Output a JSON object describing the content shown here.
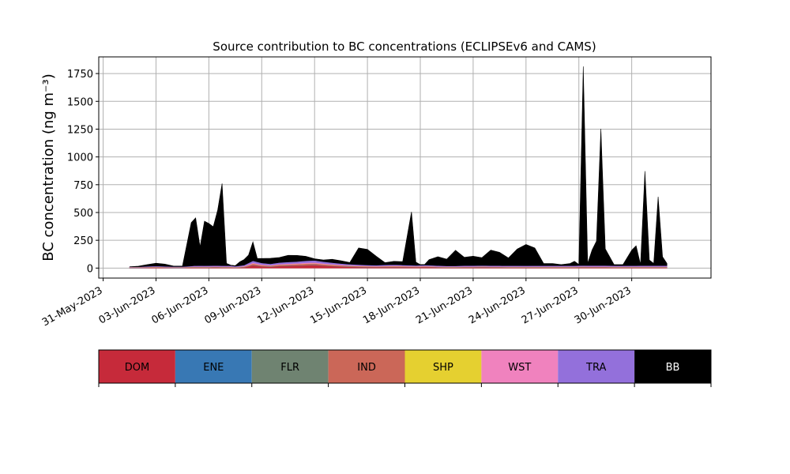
{
  "chart_data": {
    "type": "area",
    "stacked": true,
    "title": "Source contribution to BC concentrations (ECLIPSEv6 and CAMS)",
    "xlabel": "",
    "ylabel": "BC concentration (ng m⁻³)",
    "ylim": [
      -90,
      1900
    ],
    "xlim": [
      "2023-05-30T18:00",
      "2023-07-04T12:00"
    ],
    "yticks": [
      0,
      250,
      500,
      750,
      1000,
      1250,
      1500,
      1750
    ],
    "ytick_labels": [
      "0",
      "250",
      "500",
      "750",
      "1000",
      "1250",
      "1500",
      "1750"
    ],
    "xticks": [
      "2023-05-31",
      "2023-06-03",
      "2023-06-06",
      "2023-06-09",
      "2023-06-12",
      "2023-06-15",
      "2023-06-18",
      "2023-06-21",
      "2023-06-24",
      "2023-06-27",
      "2023-06-30"
    ],
    "xtick_labels": [
      "31-May-2023",
      "03-Jun-2023",
      "06-Jun-2023",
      "09-Jun-2023",
      "12-Jun-2023",
      "15-Jun-2023",
      "18-Jun-2023",
      "21-Jun-2023",
      "24-Jun-2023",
      "27-Jun-2023",
      "30-Jun-2023"
    ],
    "grid": true,
    "legend_position": "below",
    "x": [
      "2023-06-01T12:00",
      "2023-06-02T00:00",
      "2023-06-02T12:00",
      "2023-06-03T00:00",
      "2023-06-03T12:00",
      "2023-06-04T00:00",
      "2023-06-04T12:00",
      "2023-06-05T00:00",
      "2023-06-05T06:00",
      "2023-06-05T12:00",
      "2023-06-05T18:00",
      "2023-06-06T00:00",
      "2023-06-06T06:00",
      "2023-06-06T12:00",
      "2023-06-06T18:00",
      "2023-06-07T00:00",
      "2023-06-07T06:00",
      "2023-06-07T12:00",
      "2023-06-07T18:00",
      "2023-06-08T00:00",
      "2023-06-08T06:00",
      "2023-06-08T12:00",
      "2023-06-08T18:00",
      "2023-06-09T00:00",
      "2023-06-09T12:00",
      "2023-06-10T00:00",
      "2023-06-10T12:00",
      "2023-06-11T00:00",
      "2023-06-11T12:00",
      "2023-06-12T00:00",
      "2023-06-12T12:00",
      "2023-06-13T00:00",
      "2023-06-13T12:00",
      "2023-06-14T00:00",
      "2023-06-14T12:00",
      "2023-06-15T00:00",
      "2023-06-15T12:00",
      "2023-06-16T00:00",
      "2023-06-16T12:00",
      "2023-06-17T00:00",
      "2023-06-17T12:00",
      "2023-06-17T18:00",
      "2023-06-18T00:00",
      "2023-06-18T06:00",
      "2023-06-18T12:00",
      "2023-06-19T00:00",
      "2023-06-19T12:00",
      "2023-06-20T00:00",
      "2023-06-20T12:00",
      "2023-06-21T00:00",
      "2023-06-21T12:00",
      "2023-06-22T00:00",
      "2023-06-22T12:00",
      "2023-06-23T00:00",
      "2023-06-23T12:00",
      "2023-06-24T00:00",
      "2023-06-24T12:00",
      "2023-06-25T00:00",
      "2023-06-25T12:00",
      "2023-06-26T00:00",
      "2023-06-26T12:00",
      "2023-06-26T18:00",
      "2023-06-27T00:00",
      "2023-06-27T06:00",
      "2023-06-27T12:00",
      "2023-06-27T18:00",
      "2023-06-28T00:00",
      "2023-06-28T06:00",
      "2023-06-28T12:00",
      "2023-06-29T00:00",
      "2023-06-29T12:00",
      "2023-06-30T00:00",
      "2023-06-30T06:00",
      "2023-06-30T12:00",
      "2023-06-30T18:00",
      "2023-07-01T00:00",
      "2023-07-01T06:00",
      "2023-07-01T12:00",
      "2023-07-01T18:00",
      "2023-07-02T00:00"
    ],
    "series": [
      {
        "name": "DOM",
        "color": "#c62a3a",
        "values": [
          3,
          3,
          4,
          5,
          4,
          3,
          3,
          5,
          6,
          5,
          6,
          5,
          6,
          6,
          5,
          6,
          5,
          4,
          5,
          7,
          15,
          25,
          20,
          15,
          12,
          18,
          20,
          22,
          25,
          28,
          22,
          18,
          14,
          12,
          10,
          9,
          8,
          9,
          10,
          9,
          8,
          7,
          8,
          9,
          8,
          6,
          5,
          5,
          6,
          6,
          7,
          6,
          6,
          5,
          5,
          6,
          5,
          5,
          5,
          5,
          5,
          5,
          6,
          7,
          6,
          6,
          6,
          6,
          6,
          5,
          5,
          5,
          5,
          5,
          5,
          6,
          5,
          5,
          5,
          5
        ]
      },
      {
        "name": "ENE",
        "color": "#3878b4",
        "values": [
          1,
          1,
          1,
          1,
          1,
          1,
          1,
          1,
          1,
          1,
          1,
          1,
          1,
          1,
          1,
          1,
          1,
          1,
          1,
          1,
          1,
          1,
          1,
          1,
          1,
          1,
          1,
          1,
          1,
          1,
          1,
          1,
          1,
          1,
          1,
          1,
          1,
          1,
          1,
          1,
          1,
          1,
          1,
          1,
          1,
          1,
          1,
          1,
          1,
          1,
          1,
          1,
          1,
          1,
          1,
          1,
          1,
          1,
          1,
          1,
          1,
          1,
          1,
          1,
          1,
          1,
          1,
          1,
          1,
          1,
          1,
          1,
          1,
          1,
          1,
          1,
          1,
          1,
          1,
          1
        ]
      },
      {
        "name": "FLR",
        "color": "#6f8371",
        "values": [
          1,
          1,
          1,
          1,
          1,
          1,
          1,
          1,
          1,
          1,
          1,
          1,
          1,
          1,
          1,
          1,
          1,
          1,
          1,
          1,
          1,
          1,
          1,
          1,
          1,
          1,
          1,
          1,
          1,
          1,
          1,
          1,
          1,
          1,
          1,
          1,
          1,
          1,
          1,
          1,
          1,
          1,
          1,
          1,
          1,
          1,
          1,
          1,
          1,
          1,
          1,
          1,
          1,
          1,
          1,
          1,
          1,
          1,
          1,
          1,
          1,
          1,
          1,
          1,
          1,
          1,
          1,
          1,
          1,
          1,
          1,
          1,
          1,
          1,
          1,
          1,
          1,
          1,
          1,
          1
        ]
      },
      {
        "name": "IND",
        "color": "#cb6758",
        "values": [
          2,
          2,
          2,
          3,
          2,
          2,
          2,
          3,
          3,
          3,
          3,
          3,
          3,
          3,
          3,
          3,
          3,
          2,
          3,
          4,
          8,
          12,
          10,
          8,
          6,
          9,
          10,
          11,
          12,
          12,
          10,
          8,
          7,
          6,
          5,
          5,
          4,
          5,
          5,
          5,
          4,
          4,
          4,
          5,
          4,
          3,
          3,
          3,
          3,
          3,
          4,
          3,
          3,
          3,
          3,
          3,
          3,
          3,
          3,
          3,
          3,
          3,
          3,
          3,
          3,
          3,
          3,
          3,
          3,
          3,
          3,
          3,
          3,
          3,
          3,
          3,
          3,
          3,
          3,
          3
        ]
      },
      {
        "name": "SHP",
        "color": "#e5d030",
        "values": [
          1,
          1,
          1,
          1,
          1,
          1,
          1,
          1,
          1,
          1,
          1,
          1,
          1,
          1,
          1,
          1,
          1,
          1,
          1,
          1,
          1,
          1,
          1,
          1,
          1,
          1,
          1,
          1,
          1,
          1,
          1,
          1,
          1,
          1,
          1,
          1,
          1,
          1,
          1,
          1,
          1,
          1,
          1,
          1,
          1,
          1,
          1,
          1,
          1,
          1,
          1,
          1,
          1,
          1,
          1,
          1,
          1,
          1,
          1,
          1,
          1,
          1,
          1,
          1,
          1,
          1,
          1,
          1,
          1,
          1,
          1,
          1,
          1,
          1,
          1,
          1,
          1,
          1,
          1,
          1
        ]
      },
      {
        "name": "WST",
        "color": "#f082be",
        "values": [
          1,
          1,
          2,
          2,
          2,
          1,
          1,
          2,
          3,
          3,
          3,
          3,
          3,
          3,
          3,
          3,
          3,
          2,
          3,
          4,
          6,
          8,
          7,
          6,
          5,
          6,
          7,
          7,
          8,
          8,
          7,
          6,
          5,
          4,
          4,
          3,
          3,
          3,
          4,
          3,
          3,
          3,
          3,
          3,
          3,
          3,
          3,
          3,
          3,
          3,
          3,
          3,
          3,
          3,
          3,
          3,
          3,
          3,
          3,
          3,
          3,
          3,
          3,
          3,
          3,
          3,
          3,
          3,
          3,
          3,
          3,
          3,
          3,
          3,
          3,
          3,
          3,
          3,
          3,
          3
        ]
      },
      {
        "name": "TRA",
        "color": "#9370db",
        "values": [
          3,
          3,
          5,
          6,
          5,
          4,
          4,
          6,
          7,
          7,
          7,
          7,
          7,
          7,
          7,
          7,
          7,
          6,
          7,
          9,
          14,
          18,
          16,
          14,
          12,
          14,
          15,
          16,
          18,
          18,
          16,
          14,
          12,
          10,
          9,
          8,
          8,
          9,
          9,
          8,
          8,
          7,
          8,
          8,
          8,
          7,
          6,
          6,
          7,
          7,
          7,
          7,
          7,
          7,
          7,
          7,
          7,
          7,
          7,
          7,
          7,
          7,
          8,
          8,
          8,
          8,
          8,
          8,
          8,
          7,
          7,
          7,
          7,
          8,
          8,
          8,
          8,
          8,
          8,
          8
        ]
      },
      {
        "name": "BB",
        "color": "#000000",
        "values": [
          0,
          5,
          15,
          25,
          20,
          5,
          5,
          390,
          430,
          170,
          400,
          380,
          350,
          500,
          740,
          20,
          5,
          5,
          35,
          50,
          70,
          170,
          30,
          40,
          50,
          45,
          60,
          55,
          40,
          15,
          15,
          30,
          25,
          15,
          150,
          140,
          80,
          20,
          30,
          30,
          480,
          30,
          5,
          5,
          50,
          80,
          60,
          140,
          75,
          85,
          70,
          140,
          120,
          70,
          150,
          190,
          160,
          20,
          20,
          10,
          20,
          40,
          10,
          1790,
          20,
          140,
          220,
          1230,
          150,
          10,
          10,
          140,
          180,
          10,
          850,
          50,
          20,
          620,
          80,
          20
        ]
      }
    ]
  },
  "legend": {
    "items": [
      {
        "label": "DOM",
        "color": "#c62a3a",
        "text_color": "#000000"
      },
      {
        "label": "ENE",
        "color": "#3878b4",
        "text_color": "#000000"
      },
      {
        "label": "FLR",
        "color": "#6f8371",
        "text_color": "#000000"
      },
      {
        "label": "IND",
        "color": "#cb6758",
        "text_color": "#000000"
      },
      {
        "label": "SHP",
        "color": "#e5d030",
        "text_color": "#000000"
      },
      {
        "label": "WST",
        "color": "#f082be",
        "text_color": "#000000"
      },
      {
        "label": "TRA",
        "color": "#9370db",
        "text_color": "#000000"
      },
      {
        "label": "BB",
        "color": "#000000",
        "text_color": "#ffffff"
      }
    ]
  }
}
